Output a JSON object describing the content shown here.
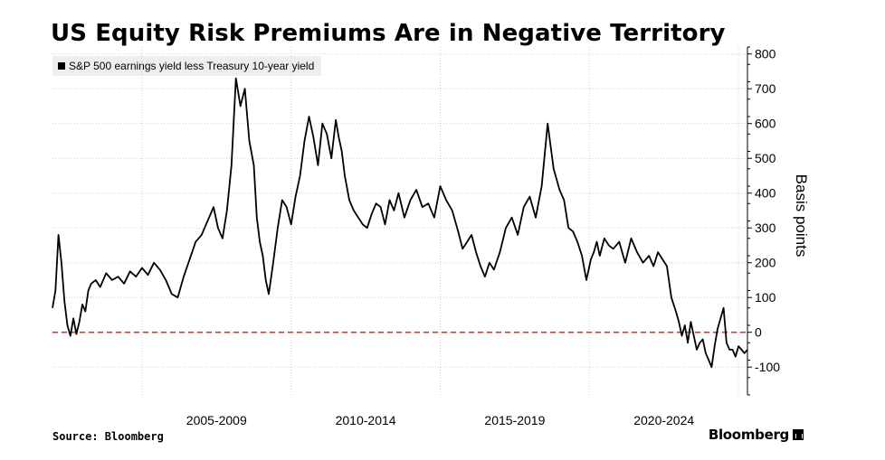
{
  "chart_data": {
    "type": "line",
    "title": "US Equity Risk Premiums Are in Negative Territory",
    "legend": "S&P 500 earnings yield less Treasury 10-year yield",
    "source": "Source: Bloomberg",
    "brand": "Bloomberg",
    "ylabel": "Basis points",
    "ylim": [
      -180,
      820
    ],
    "yticks": [
      -100,
      0,
      100,
      200,
      300,
      400,
      500,
      600,
      700,
      800
    ],
    "xlim": [
      2002.0,
      2025.3
    ],
    "xtick_labels": [
      "2005-2009",
      "2010-2014",
      "2015-2019",
      "2020-2024"
    ],
    "reference_line": {
      "y": 0,
      "style": "dashed",
      "color": "#e8322d"
    },
    "series": [
      {
        "name": "S&P 500 earnings yield less Treasury 10-year yield",
        "color": "#000000",
        "x": [
          2002.0,
          2002.1,
          2002.2,
          2002.3,
          2002.4,
          2002.5,
          2002.6,
          2002.7,
          2002.8,
          2002.9,
          2003.0,
          2003.1,
          2003.2,
          2003.3,
          2003.45,
          2003.6,
          2003.8,
          2004.0,
          2004.2,
          2004.4,
          2004.6,
          2004.8,
          2005.0,
          2005.2,
          2005.4,
          2005.6,
          2005.8,
          2006.0,
          2006.2,
          2006.4,
          2006.6,
          2006.8,
          2007.0,
          2007.2,
          2007.4,
          2007.55,
          2007.7,
          2007.85,
          2008.0,
          2008.15,
          2008.3,
          2008.45,
          2008.6,
          2008.75,
          2008.85,
          2008.95,
          2009.05,
          2009.15,
          2009.25,
          2009.4,
          2009.55,
          2009.7,
          2009.85,
          2010.0,
          2010.15,
          2010.3,
          2010.45,
          2010.6,
          2010.75,
          2010.9,
          2011.05,
          2011.2,
          2011.35,
          2011.5,
          2011.6,
          2011.7,
          2011.8,
          2011.95,
          2012.1,
          2012.25,
          2012.4,
          2012.55,
          2012.7,
          2012.85,
          2013.0,
          2013.15,
          2013.3,
          2013.45,
          2013.6,
          2013.8,
          2014.0,
          2014.2,
          2014.4,
          2014.6,
          2014.8,
          2015.0,
          2015.2,
          2015.4,
          2015.6,
          2015.75,
          2015.9,
          2016.05,
          2016.2,
          2016.35,
          2016.5,
          2016.65,
          2016.8,
          2017.0,
          2017.2,
          2017.4,
          2017.6,
          2017.8,
          2018.0,
          2018.2,
          2018.4,
          2018.6,
          2018.8,
          2019.0,
          2019.15,
          2019.3,
          2019.45,
          2019.6,
          2019.75,
          2019.9,
          2020.05,
          2020.15,
          2020.25,
          2020.35,
          2020.5,
          2020.65,
          2020.8,
          2021.0,
          2021.2,
          2021.4,
          2021.6,
          2021.8,
          2022.0,
          2022.15,
          2022.3,
          2022.45,
          2022.6,
          2022.75,
          2022.9,
          2023.0,
          2023.1,
          2023.2,
          2023.3,
          2023.4,
          2023.5,
          2023.6,
          2023.7,
          2023.8,
          2023.9,
          2024.0,
          2024.1,
          2024.2,
          2024.3,
          2024.4,
          2024.5,
          2024.6,
          2024.7,
          2024.8,
          2024.9,
          2025.0,
          2025.1,
          2025.2,
          2025.3
        ],
        "values": [
          70,
          120,
          280,
          200,
          90,
          20,
          -10,
          40,
          -5,
          30,
          80,
          60,
          120,
          140,
          150,
          130,
          170,
          150,
          160,
          140,
          175,
          160,
          185,
          165,
          200,
          180,
          150,
          110,
          100,
          160,
          210,
          260,
          280,
          320,
          360,
          300,
          270,
          350,
          480,
          730,
          650,
          700,
          550,
          480,
          330,
          260,
          220,
          150,
          110,
          200,
          300,
          380,
          360,
          310,
          390,
          450,
          550,
          620,
          560,
          480,
          600,
          570,
          500,
          610,
          560,
          520,
          450,
          380,
          350,
          330,
          310,
          300,
          340,
          370,
          360,
          310,
          380,
          350,
          400,
          330,
          380,
          410,
          360,
          370,
          330,
          420,
          380,
          350,
          290,
          240,
          260,
          280,
          230,
          190,
          160,
          200,
          180,
          230,
          300,
          330,
          280,
          360,
          390,
          330,
          420,
          600,
          470,
          410,
          380,
          300,
          290,
          260,
          220,
          150,
          210,
          230,
          260,
          220,
          270,
          250,
          240,
          260,
          200,
          270,
          230,
          200,
          220,
          190,
          230,
          210,
          190,
          100,
          60,
          30,
          -10,
          20,
          -30,
          30,
          -10,
          -50,
          -30,
          -20,
          -60,
          -80,
          -100,
          -40,
          10,
          40,
          70,
          -30,
          -50,
          -50,
          -70,
          -40,
          -50,
          -60,
          -50
        ]
      }
    ]
  }
}
